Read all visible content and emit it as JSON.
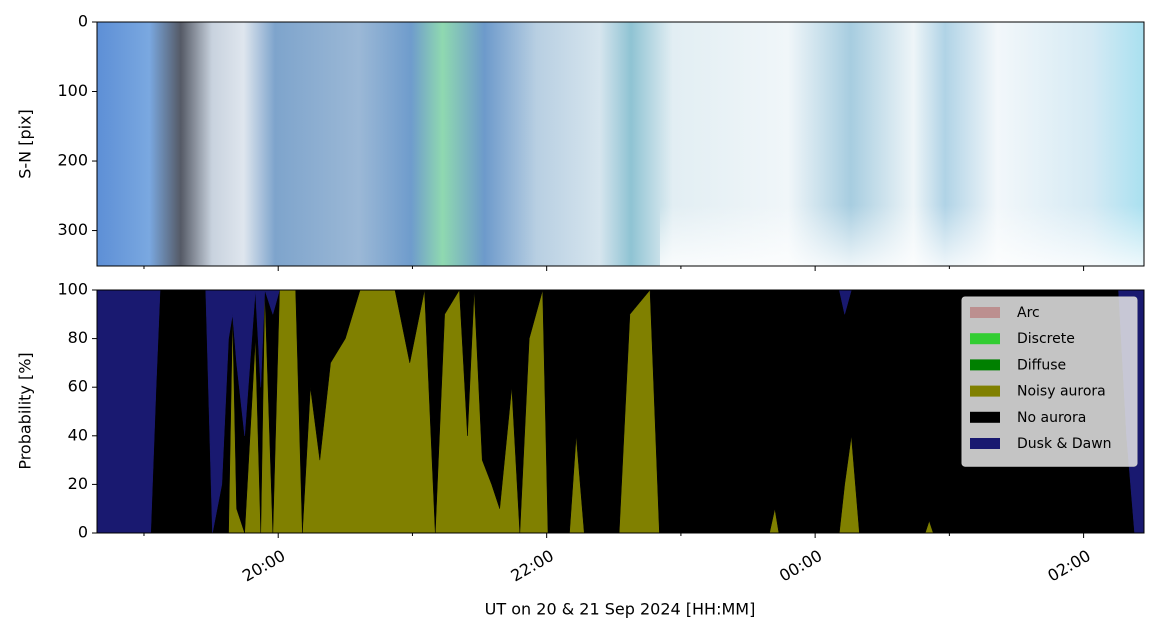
{
  "chart_data": [
    {
      "type": "image",
      "ylabel": "S-N [pix]",
      "ylim": [
        351,
        0
      ],
      "yticks": [
        0,
        100,
        200,
        300
      ]
    },
    {
      "type": "stacked_area",
      "ylabel": "Probability [%]",
      "xlabel": "UT on 20 & 21 Sep 2024 [HH:MM]",
      "xlim": [
        18.65,
        26.45
      ],
      "xticks": [
        {
          "value": 20,
          "label": "20:00"
        },
        {
          "value": 22,
          "label": "22:00"
        },
        {
          "value": 24,
          "label": "00:00"
        },
        {
          "value": 26,
          "label": "02:00"
        }
      ],
      "xminorticks": [
        19,
        21,
        23,
        25
      ],
      "ylim": [
        0,
        100
      ],
      "yticks": [
        0,
        20,
        40,
        60,
        80,
        100
      ],
      "legend": "upper right",
      "x": [
        18.65,
        19.05,
        19.09,
        19.12,
        19.46,
        19.51,
        19.58,
        19.63,
        19.66,
        19.69,
        19.75,
        19.83,
        19.87,
        19.9,
        19.96,
        20.01,
        20.13,
        20.18,
        20.24,
        20.31,
        20.39,
        20.5,
        20.61,
        20.87,
        20.98,
        21.09,
        21.17,
        21.24,
        21.35,
        21.41,
        21.46,
        21.52,
        21.59,
        21.65,
        21.74,
        21.8,
        21.87,
        21.97,
        22.01,
        22.17,
        22.22,
        22.28,
        22.54,
        22.62,
        22.77,
        22.84,
        23.66,
        23.7,
        23.73,
        24.18,
        24.22,
        24.27,
        24.33,
        24.82,
        24.85,
        24.88,
        26.26,
        26.32,
        26.38,
        26.45
      ],
      "series": [
        {
          "name": "Arc",
          "color": "#bc8f8f",
          "values": [
            0,
            0,
            0,
            0,
            0,
            0,
            0,
            0,
            0,
            0,
            0,
            0,
            0,
            0,
            0,
            0,
            0,
            0,
            0,
            0,
            0,
            0,
            0,
            0,
            0,
            0,
            0,
            0,
            0,
            0,
            0,
            0,
            0,
            0,
            0,
            0,
            0,
            0,
            0,
            0,
            0,
            0,
            0,
            0,
            0,
            0,
            0,
            0,
            0,
            0,
            0,
            0,
            0,
            0,
            0,
            0,
            0,
            0,
            0,
            0
          ]
        },
        {
          "name": "Discrete",
          "color": "#32cd32",
          "values": [
            0,
            0,
            0,
            0,
            0,
            0,
            0,
            0,
            0,
            0,
            0,
            0,
            0,
            0,
            0,
            0,
            0,
            0,
            0,
            0,
            0,
            0,
            0,
            0,
            0,
            0,
            0,
            0,
            0,
            0,
            0,
            0,
            0,
            0,
            0,
            0,
            0,
            0,
            0,
            0,
            0,
            0,
            0,
            0,
            0,
            0,
            0,
            0,
            0,
            0,
            0,
            0,
            0,
            0,
            0,
            0,
            0,
            0,
            0,
            0
          ]
        },
        {
          "name": "Diffuse",
          "color": "#008000",
          "values": [
            0,
            0,
            0,
            0,
            0,
            0,
            0,
            0,
            0,
            0,
            0,
            0,
            0,
            0,
            0,
            0,
            0,
            0,
            0,
            0,
            0,
            0,
            0,
            0,
            0,
            0,
            0,
            0,
            0,
            0,
            0,
            0,
            0,
            0,
            0,
            0,
            0,
            0,
            0,
            0,
            0,
            0,
            0,
            0,
            0,
            0,
            0,
            0,
            0,
            0,
            0,
            0,
            0,
            0,
            0,
            0,
            0,
            0,
            0,
            0
          ]
        },
        {
          "name": "Noisy aurora",
          "color": "#808000",
          "values": [
            0,
            0,
            0,
            0,
            0,
            0,
            0,
            0,
            90,
            10,
            0,
            80,
            0,
            100,
            0,
            100,
            100,
            0,
            60,
            30,
            70,
            80,
            100,
            100,
            70,
            100,
            0,
            90,
            100,
            40,
            100,
            30,
            20,
            10,
            60,
            0,
            80,
            100,
            0,
            0,
            40,
            0,
            0,
            90,
            100,
            0,
            0,
            10,
            0,
            0,
            20,
            40,
            0,
            0,
            5,
            0,
            0,
            0,
            0,
            0
          ]
        },
        {
          "name": "No aurora",
          "color": "#000000",
          "values": [
            0,
            0,
            60,
            100,
            100,
            0,
            20,
            80,
            0,
            60,
            40,
            20,
            60,
            0,
            90,
            0,
            0,
            100,
            40,
            70,
            30,
            20,
            0,
            0,
            30,
            0,
            100,
            10,
            0,
            60,
            0,
            70,
            80,
            90,
            40,
            100,
            20,
            0,
            100,
            100,
            60,
            100,
            100,
            10,
            0,
            100,
            100,
            90,
            100,
            100,
            70,
            60,
            100,
            100,
            95,
            100,
            100,
            40,
            0,
            0
          ]
        },
        {
          "name": "Dusk & Dawn",
          "color": "#191970",
          "values": [
            100,
            100,
            40,
            0,
            0,
            100,
            80,
            20,
            10,
            30,
            60,
            0,
            40,
            0,
            10,
            0,
            0,
            0,
            0,
            0,
            0,
            0,
            0,
            0,
            0,
            0,
            0,
            0,
            0,
            0,
            0,
            0,
            0,
            0,
            0,
            0,
            0,
            0,
            0,
            0,
            0,
            0,
            0,
            0,
            0,
            0,
            0,
            0,
            0,
            0,
            10,
            0,
            0,
            0,
            0,
            0,
            0,
            60,
            100,
            100
          ]
        }
      ]
    }
  ]
}
